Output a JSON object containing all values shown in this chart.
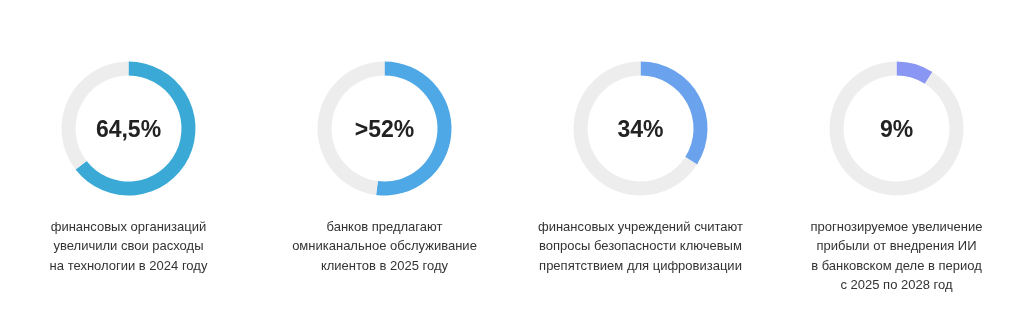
{
  "chart_data": [
    {
      "type": "donut",
      "categories": [
        null,
        null
      ],
      "values": [
        64.5,
        35.5
      ],
      "colors": [
        "#3aa9d6",
        "#ededed"
      ],
      "annotations": [
        "64,5%",
        "финансовых организаций\nувеличили свои расходы\nна технологии в 2024 году"
      ]
    },
    {
      "type": "donut",
      "categories": [
        null,
        null
      ],
      "values": [
        52,
        48
      ],
      "colors": [
        "#4ea8e6",
        "#ededed"
      ],
      "annotations": [
        ">52%",
        "банков предлагают\nомниканальное обслуживание\nклиентов в 2025 году"
      ]
    },
    {
      "type": "donut",
      "categories": [
        null,
        null
      ],
      "values": [
        34,
        66
      ],
      "colors": [
        "#6aa2ee",
        "#ededed"
      ],
      "annotations": [
        "34%",
        "финансовых учреждений считают\nвопросы безопасности ключевым\nпрепятствием для цифровизации"
      ]
    },
    {
      "type": "donut",
      "categories": [
        null,
        null
      ],
      "values": [
        9,
        91
      ],
      "colors": [
        "#8a96f3",
        "#ededed"
      ],
      "annotations": [
        "9%",
        "прогнозируемое увеличение\nприбыли от внедрения ИИ\nв банковском деле в период\nс 2025 по 2028 год"
      ]
    }
  ]
}
